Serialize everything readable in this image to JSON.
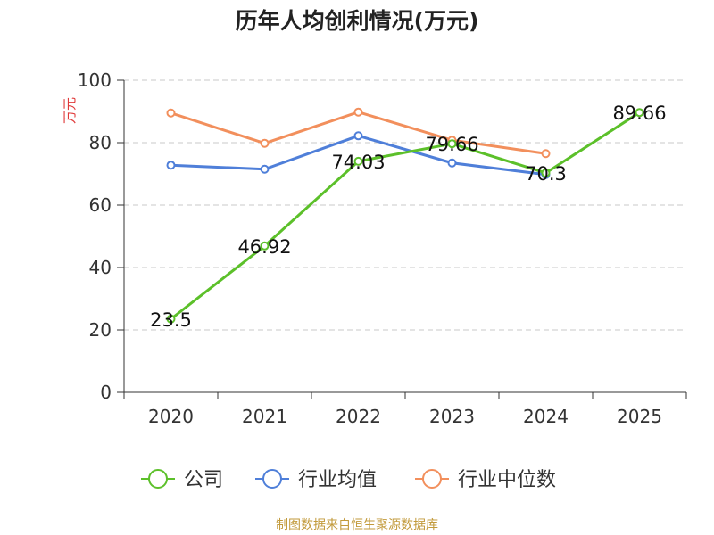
{
  "title": "历年人均创利情况(万元)",
  "source": "制图数据来自恒生聚源数据库",
  "chart_data": {
    "type": "line",
    "title": "历年人均创利情况(万元)",
    "ylabel": "万元",
    "xlabel": "",
    "ylim": [
      0,
      100
    ],
    "yticks": [
      0,
      20,
      40,
      60,
      80,
      100
    ],
    "grid": true,
    "legend_position": "bottom",
    "categories": [
      "2020",
      "2021",
      "2022",
      "2023",
      "2024",
      "2025"
    ],
    "series": [
      {
        "name": "公司",
        "color": "#5cc02a",
        "values": [
          23.5,
          46.92,
          74.03,
          79.66,
          70.3,
          89.66
        ],
        "labels": [
          "23.5",
          "46.92",
          "74.03",
          "79.66",
          "70.3",
          "89.66"
        ]
      },
      {
        "name": "行业均值",
        "color": "#4f7fd9",
        "values": [
          72.8,
          71.5,
          82.2,
          73.5,
          69.8,
          null
        ]
      },
      {
        "name": "行业中位数",
        "color": "#f28f5c",
        "values": [
          89.5,
          79.8,
          89.8,
          80.8,
          76.5,
          null
        ]
      }
    ]
  }
}
